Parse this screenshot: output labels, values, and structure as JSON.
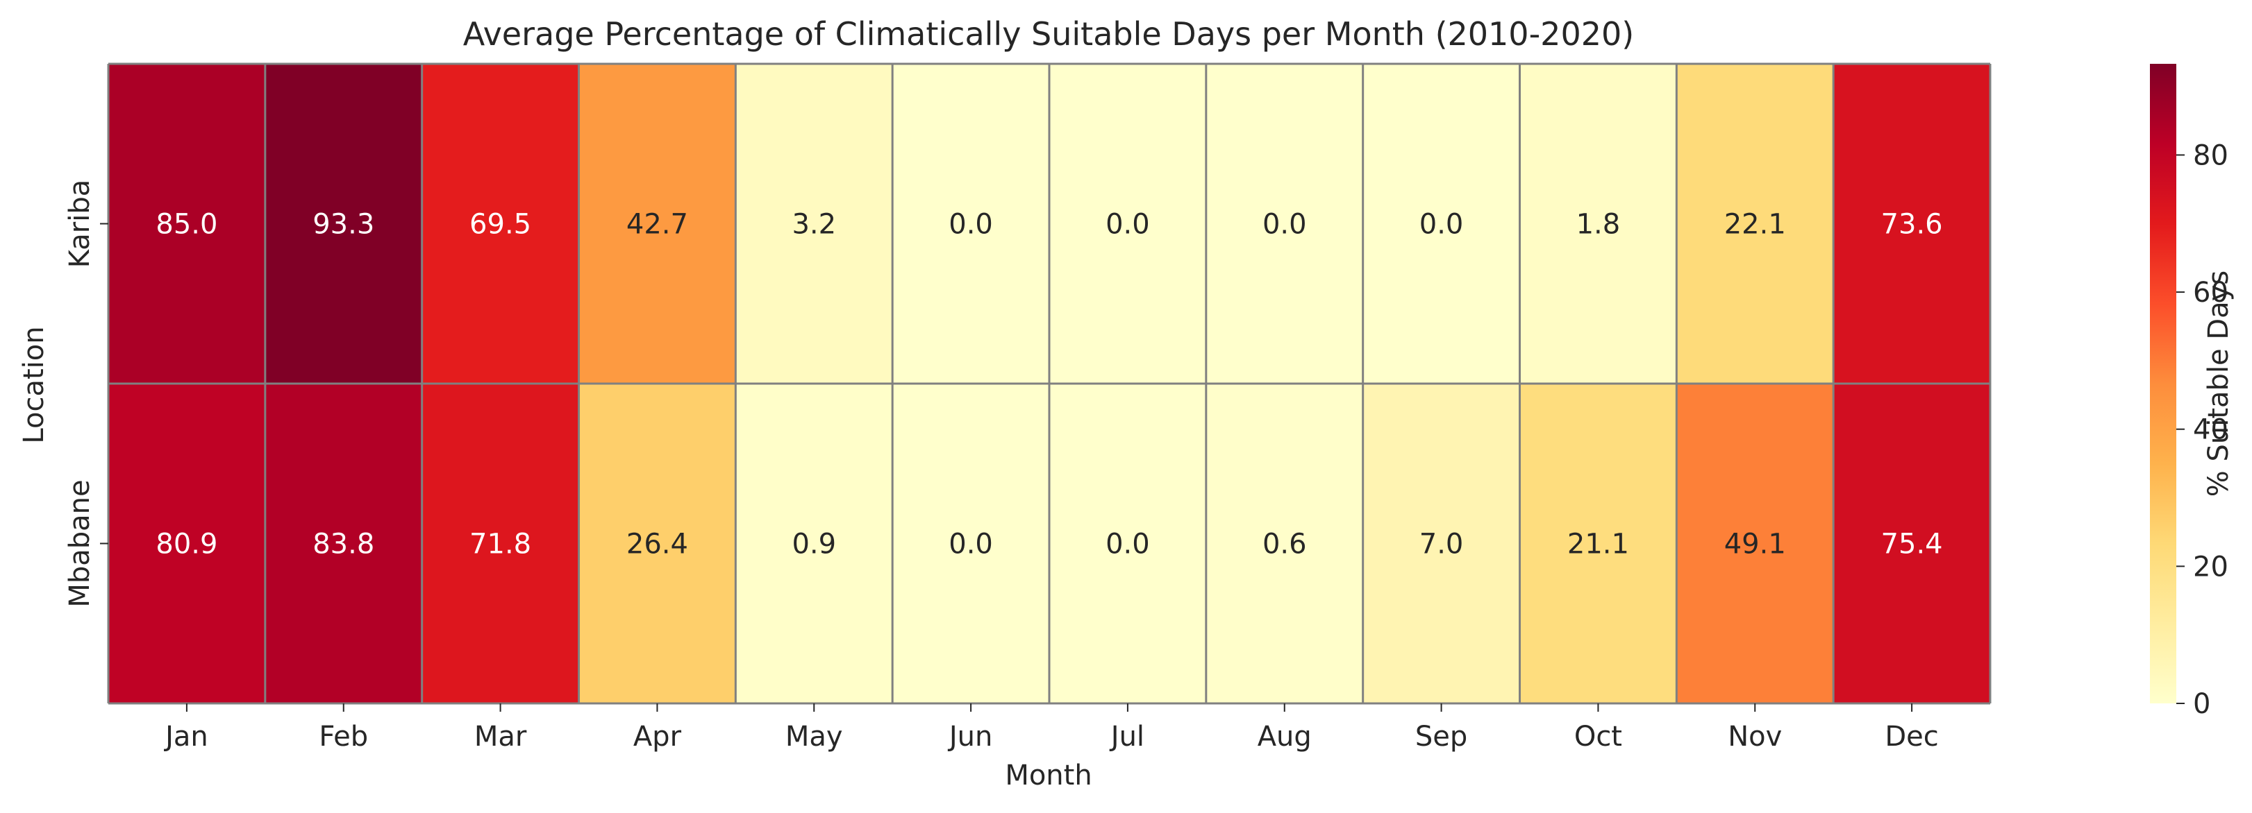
{
  "chart_data": {
    "type": "heatmap",
    "title": "Average Percentage of Climatically Suitable Days per Month (2010-2020)",
    "xlabel": "Month",
    "ylabel": "Location",
    "x_categories": [
      "Jan",
      "Feb",
      "Mar",
      "Apr",
      "May",
      "Jun",
      "Jul",
      "Aug",
      "Sep",
      "Oct",
      "Nov",
      "Dec"
    ],
    "y_categories": [
      "Kariba",
      "Mbabane"
    ],
    "values": [
      [
        85.0,
        93.3,
        69.5,
        42.7,
        3.2,
        0.0,
        0.0,
        0.0,
        0.0,
        1.8,
        22.1,
        73.6
      ],
      [
        80.9,
        83.8,
        71.8,
        26.4,
        0.9,
        0.0,
        0.0,
        0.6,
        7.0,
        21.1,
        49.1,
        75.4
      ]
    ],
    "value_labels": [
      [
        "85.0",
        "93.3",
        "69.5",
        "42.7",
        "3.2",
        "0.0",
        "0.0",
        "0.0",
        "0.0",
        "1.8",
        "22.1",
        "73.6"
      ],
      [
        "80.9",
        "83.8",
        "71.8",
        "26.4",
        "0.9",
        "0.0",
        "0.0",
        "0.6",
        "7.0",
        "21.1",
        "49.1",
        "75.4"
      ]
    ],
    "colorbar": {
      "label": "% Suitable Days",
      "range": [
        0,
        93.3
      ],
      "ticks": [
        0,
        20,
        40,
        60,
        80
      ],
      "tick_labels": [
        "0",
        "20",
        "40",
        "60",
        "80"
      ],
      "colormap": "YlOrRd"
    },
    "grid_line_color": "#808080"
  }
}
